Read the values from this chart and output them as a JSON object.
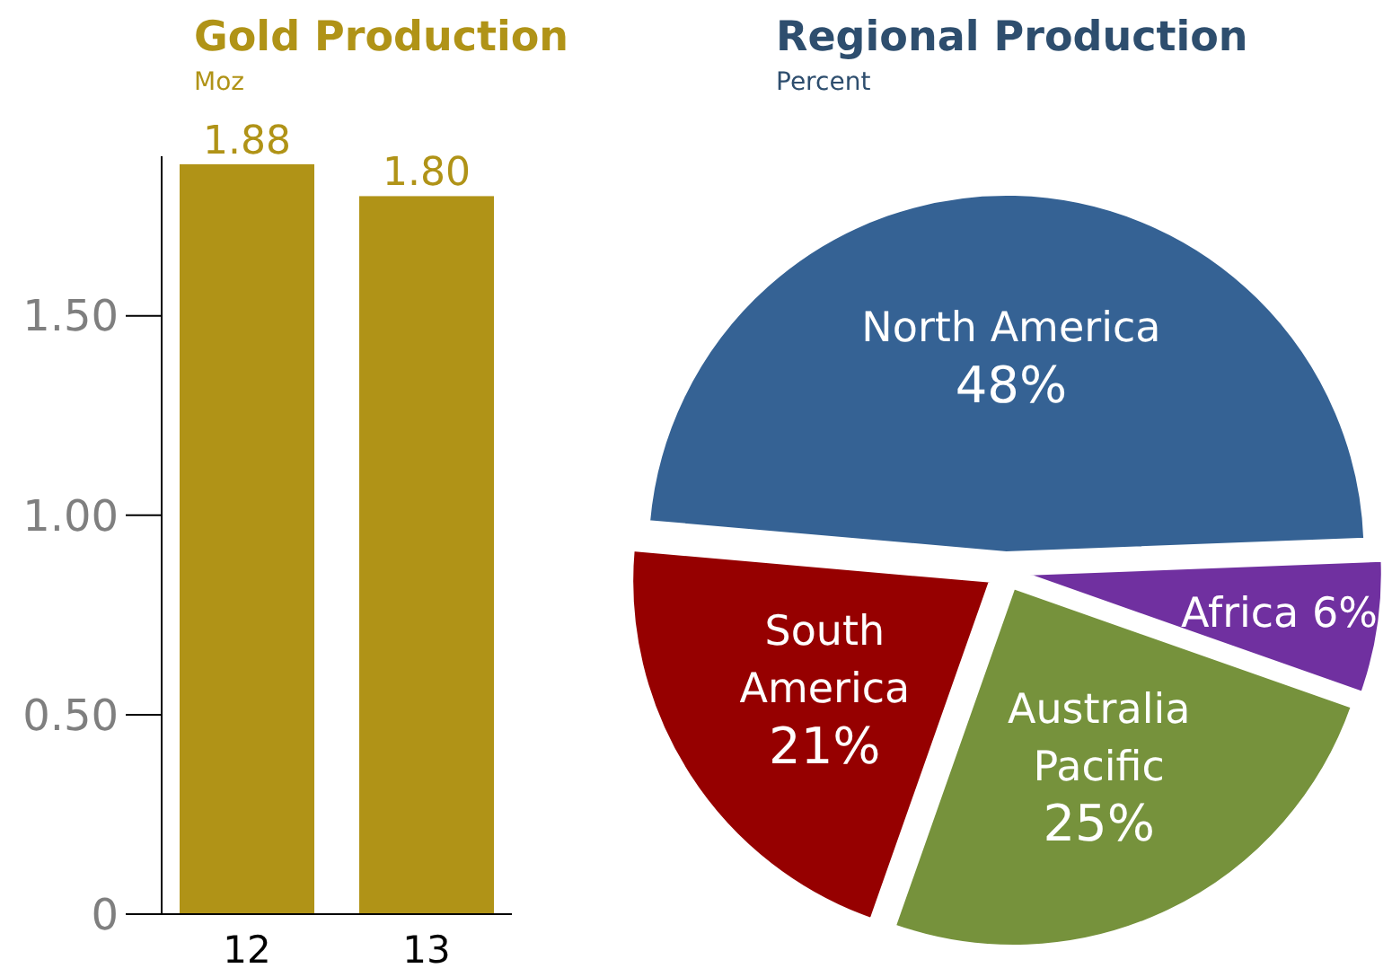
{
  "chart_data": [
    {
      "type": "bar",
      "title": "Gold Production",
      "subtitle": "Moz",
      "categories": [
        "12",
        "13"
      ],
      "values": [
        1.88,
        1.8
      ],
      "value_labels": [
        "1.88",
        "1.80"
      ],
      "color": "#b09317",
      "ylim": [
        0,
        1.9
      ],
      "yticks": [
        0,
        {
          "value": 0.5,
          "label": "0.50"
        },
        {
          "value": 1,
          "label": "1.00"
        },
        {
          "value": 1.5,
          "label": "1.50"
        }
      ],
      "grid": false
    },
    {
      "type": "pie",
      "title": "Regional Production",
      "subtitle": "Percent",
      "categories": [
        "North America",
        "Africa",
        "Australia Pacific",
        "South America"
      ],
      "values": [
        48,
        6,
        25,
        21
      ],
      "value_labels": [
        "48%",
        "6%",
        "25%",
        "21%"
      ],
      "colors": [
        "#356294",
        "#7030a0",
        "#76923c",
        "#960000"
      ]
    }
  ]
}
